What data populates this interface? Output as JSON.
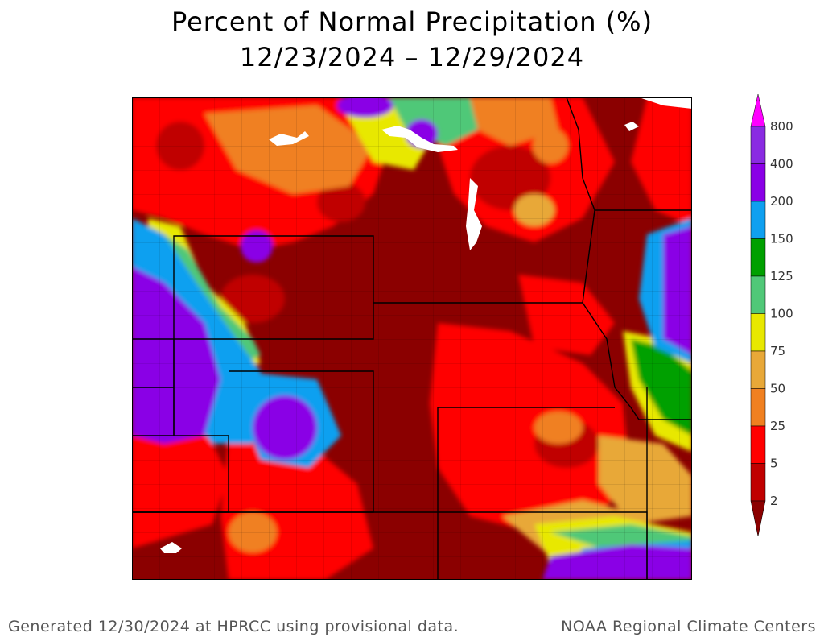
{
  "header": {
    "title": "Percent of Normal Precipitation (%)",
    "subtitle": "12/23/2024 – 12/29/2024"
  },
  "legend": {
    "ticks": [
      "800",
      "400",
      "200",
      "150",
      "125",
      "100",
      "75",
      "50",
      "25",
      "5",
      "2"
    ],
    "colors": {
      "gt800": "#ff00ff",
      "400_800": "#8a2be2",
      "200_400": "#8a00e6",
      "150_200": "#0fa0f0",
      "125_150": "#00a000",
      "100_125": "#50c878",
      "75_100": "#e8e800",
      "50_75": "#e8a838",
      "25_50": "#f08020",
      "5_25": "#ff0000",
      "2_5": "#c00000",
      "lt2": "#8b0000"
    }
  },
  "footer": {
    "left": "Generated 12/30/2024 at HPRCC using provisional data.",
    "right": "NOAA Regional Climate Centers"
  }
}
